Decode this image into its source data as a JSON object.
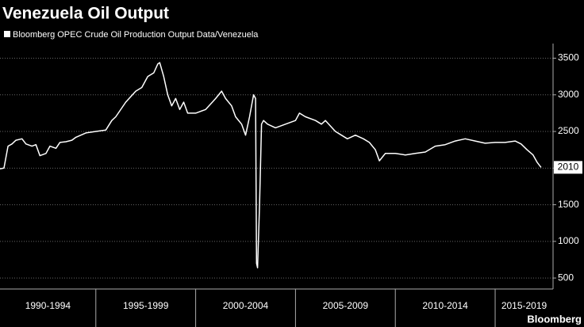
{
  "chart_data": {
    "type": "line",
    "title": "Venezuela Oil Output",
    "source": "Bloomberg",
    "series": [
      {
        "name": "Bloomberg OPEC Crude Oil Production Output Data/Venezuela",
        "color": "#ffffff",
        "x": [
          1990.2,
          1990.4,
          1990.6,
          1990.8,
          1991.0,
          1991.3,
          1991.5,
          1991.8,
          1992.0,
          1992.2,
          1992.5,
          1992.7,
          1993.0,
          1993.2,
          1993.5,
          1993.8,
          1994.0,
          1994.5,
          1995.0,
          1995.5,
          1995.8,
          1996.0,
          1996.5,
          1997.0,
          1997.3,
          1997.6,
          1997.9,
          1998.1,
          1998.2,
          1998.4,
          1998.6,
          1998.8,
          1999.0,
          1999.2,
          1999.4,
          1999.6,
          2000.0,
          2000.5,
          2001.0,
          2001.3,
          2001.5,
          2001.8,
          2002.0,
          2002.3,
          2002.5,
          2002.7,
          2002.8,
          2002.9,
          2003.0,
          2003.05,
          2003.1,
          2003.2,
          2003.3,
          2003.4,
          2003.6,
          2004.0,
          2004.5,
          2005.0,
          2005.2,
          2005.5,
          2006.0,
          2006.3,
          2006.5,
          2007.0,
          2007.3,
          2007.6,
          2008.0,
          2008.4,
          2008.7,
          2009.0,
          2009.2,
          2009.5,
          2010.0,
          2010.5,
          2011.0,
          2011.5,
          2012.0,
          2012.5,
          2013.0,
          2013.5,
          2014.0,
          2014.5,
          2015.0,
          2015.5,
          2016.0,
          2016.3,
          2016.6,
          2016.9,
          2017.1,
          2017.3
        ],
        "values": [
          1990,
          2000,
          2300,
          2330,
          2380,
          2400,
          2330,
          2300,
          2320,
          2170,
          2200,
          2300,
          2270,
          2350,
          2360,
          2380,
          2420,
          2480,
          2500,
          2520,
          2650,
          2700,
          2900,
          3050,
          3100,
          3250,
          3300,
          3420,
          3440,
          3250,
          3000,
          2850,
          2950,
          2800,
          2900,
          2750,
          2750,
          2800,
          2950,
          3050,
          2950,
          2850,
          2700,
          2600,
          2450,
          2700,
          2850,
          3000,
          2950,
          700,
          640,
          1500,
          2600,
          2650,
          2600,
          2550,
          2600,
          2650,
          2750,
          2700,
          2650,
          2600,
          2650,
          2500,
          2450,
          2400,
          2450,
          2400,
          2350,
          2250,
          2100,
          2200,
          2200,
          2180,
          2200,
          2220,
          2300,
          2320,
          2370,
          2400,
          2370,
          2340,
          2350,
          2350,
          2370,
          2330,
          2250,
          2180,
          2080,
          2010
        ]
      }
    ],
    "categories": [
      "1990-1994",
      "1995-1999",
      "2000-2004",
      "2005-2009",
      "2010-2014",
      "2015-2019"
    ],
    "xlim": [
      1990.2,
      2017.9
    ],
    "xticks": [
      1995,
      2000,
      2005,
      2010,
      2015
    ],
    "ylim": [
      350,
      3700
    ],
    "yticks": [
      500,
      1000,
      1500,
      2000,
      2500,
      3000,
      3500
    ],
    "grid": true
  }
}
